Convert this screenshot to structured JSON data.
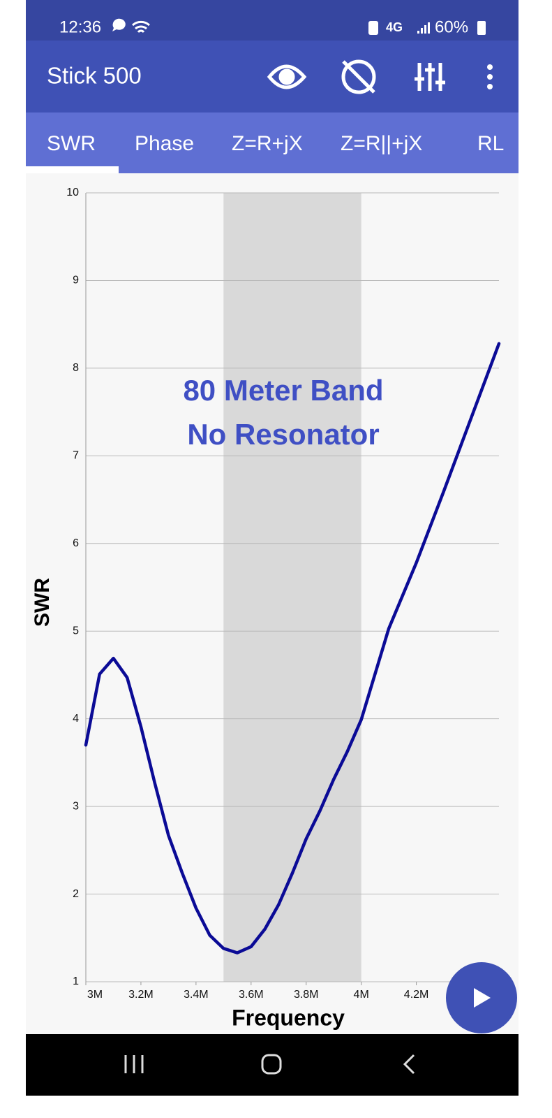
{
  "status_bar": {
    "time": "12:36",
    "network": "4G",
    "battery": "60%"
  },
  "app_bar": {
    "title": "Stick 500"
  },
  "tabs": [
    "SWR",
    "Phase",
    "Z=R+jX",
    "Z=R||+jX",
    "RL"
  ],
  "chart_data": {
    "type": "line",
    "xlabel": "Frequency",
    "ylabel": "SWR",
    "annotation": [
      "80 Meter Band",
      "No Resonator"
    ],
    "band": [
      3500000,
      4000000
    ],
    "x": [
      3000000,
      3050000,
      3100000,
      3150000,
      3200000,
      3250000,
      3300000,
      3350000,
      3400000,
      3450000,
      3500000,
      3550000,
      3600000,
      3650000,
      3700000,
      3750000,
      3800000,
      3850000,
      3900000,
      3950000,
      4000000,
      4100000,
      4200000,
      4300000,
      4400000,
      4500000
    ],
    "series": [
      {
        "name": "SWR",
        "color": "#0b0b96",
        "values": [
          3.7,
          4.51,
          4.69,
          4.47,
          3.91,
          3.27,
          2.67,
          2.24,
          1.84,
          1.53,
          1.38,
          1.33,
          1.4,
          1.6,
          1.88,
          2.24,
          2.63,
          2.95,
          3.31,
          3.63,
          3.99,
          5.03,
          5.78,
          6.6,
          7.44,
          8.28
        ]
      }
    ],
    "xlim": [
      3000000,
      4500000
    ],
    "xticks": [
      {
        "value": 3000000,
        "label": "3M"
      },
      {
        "value": 3200000,
        "label": "3.2M"
      },
      {
        "value": 3400000,
        "label": "3.4M"
      },
      {
        "value": 3600000,
        "label": "3.6M"
      },
      {
        "value": 3800000,
        "label": "3.8M"
      },
      {
        "value": 4000000,
        "label": "4M"
      },
      {
        "value": 4200000,
        "label": "4.2M"
      }
    ],
    "ylim": [
      1,
      10
    ],
    "yticks": [
      1,
      2,
      3,
      4,
      5,
      6,
      7,
      8,
      9,
      10
    ],
    "grid": true
  }
}
